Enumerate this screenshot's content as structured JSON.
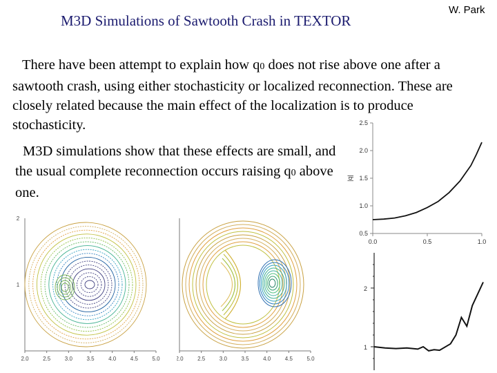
{
  "header": {
    "title": "M3D Simulations of Sawtooth Crash in TEXTOR",
    "author": "W. Park"
  },
  "body": {
    "para1_a": "There have been attempt to explain how q",
    "para1_sub": "0",
    "para1_b": " does not rise above one after a sawtooth crash, using  either stochasticity or localized reconnection. These are closely related because the main effect of the localization is to produce stochasticity.",
    "para2_a": "M3D simulations show that these effects are small, and the usual complete reconnection occurs raising q",
    "para2_sub": "0",
    "para2_b": " above one."
  },
  "colors": {
    "title": "#1a1a6e",
    "curve": "#111111"
  },
  "chart_data": [
    {
      "type": "line",
      "title": "",
      "xlabel": "",
      "ylabel": "|q|",
      "xlim": [
        0.0,
        1.0
      ],
      "ylim": [
        0.5,
        2.5
      ],
      "x_ticks": [
        "0.0",
        "0.5",
        "1.0"
      ],
      "y_ticks": [
        "0.5",
        "1.0",
        "1.5",
        "2.0",
        "2.5"
      ],
      "x": [
        0.0,
        0.1,
        0.2,
        0.3,
        0.4,
        0.5,
        0.6,
        0.7,
        0.8,
        0.9,
        0.95,
        1.0
      ],
      "values": [
        0.75,
        0.76,
        0.78,
        0.82,
        0.88,
        0.97,
        1.08,
        1.24,
        1.45,
        1.73,
        1.93,
        2.15
      ]
    },
    {
      "type": "line",
      "title": "",
      "xlabel": "",
      "ylabel": "",
      "xlim": [
        0,
        1
      ],
      "ylim": [
        0.6,
        2.6
      ],
      "y_ticks": [
        "1",
        "2"
      ],
      "x": [
        0.0,
        0.1,
        0.2,
        0.3,
        0.4,
        0.45,
        0.5,
        0.55,
        0.6,
        0.7,
        0.75,
        0.8,
        0.85,
        0.9,
        0.95,
        1.0
      ],
      "values": [
        1.0,
        0.98,
        0.97,
        0.98,
        0.96,
        1.0,
        0.93,
        0.95,
        0.94,
        1.05,
        1.2,
        1.5,
        1.35,
        1.7,
        1.9,
        2.1
      ]
    },
    {
      "type": "contour",
      "title": "",
      "x_ticks": [
        "2.0",
        "2.5",
        "3.0",
        "3.5",
        "4.0",
        "4.5",
        "5.0"
      ],
      "y_ticks": [
        "1",
        "2"
      ]
    },
    {
      "type": "contour",
      "title": "",
      "x_ticks": [
        "2.0",
        "2.5",
        "3.0",
        "3.5",
        "4.0",
        "4.5",
        "5.0"
      ]
    }
  ]
}
